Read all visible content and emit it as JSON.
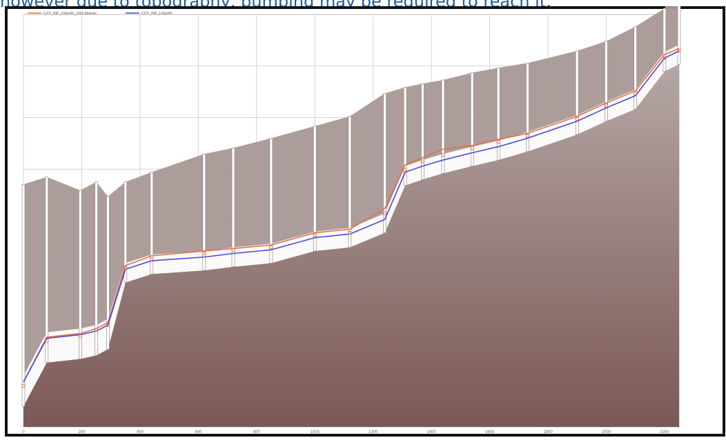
{
  "caption": "however due to topography, pumping may be required to reach it.",
  "chart_data": {
    "type": "line",
    "title": "",
    "xlabel": "",
    "ylabel": "",
    "xlim": [
      0,
      2250
    ],
    "x_ticks": [
      "0",
      "200",
      "400",
      "600",
      "800",
      "1000",
      "1200",
      "1400",
      "1600",
      "1800",
      "2000",
      "2200"
    ],
    "y_ticks": [
      "",
      "",
      "",
      "",
      "",
      "",
      ""
    ],
    "grid": true,
    "legend": "top-left",
    "colors": {
      "ground_top": "#b4a7a5",
      "ground_bottom": "#7b5856",
      "series_1": "#e0704a",
      "series_2": "#4848d8",
      "grid": "#d3d3d3",
      "frame": "#111111"
    },
    "x": [
      0,
      80,
      195,
      250,
      290,
      350,
      440,
      620,
      720,
      850,
      1000,
      1120,
      1240,
      1310,
      1370,
      1440,
      1540,
      1630,
      1730,
      1900,
      2000,
      2100,
      2200,
      2250
    ],
    "series": [
      {
        "name": "CITY_IHP_100yrHF_1500 Melvale",
        "values": [
          3.7,
          7.4,
          7.7,
          8.1,
          8.6,
          13.3,
          14.1,
          14.5,
          14.7,
          15.0,
          16.0,
          16.3,
          18.0,
          21.6,
          22.2,
          22.9,
          23.2,
          23.7,
          24.2,
          25.6,
          26.7,
          27.7,
          30.7,
          31.2
        ],
        "markers": [
          3.4,
          7.1,
          7.5,
          8.0,
          8.4,
          13.1,
          14.0,
          14.3,
          14.6,
          14.8,
          15.8,
          16.0,
          17.6,
          21.2,
          21.9,
          22.4,
          23.0,
          23.5,
          24.0,
          25.4,
          26.5,
          27.5,
          30.4,
          31.0
        ]
      },
      {
        "name": "CITY_IHP_100yrHF",
        "values": [
          3.7,
          7.3,
          7.6,
          7.9,
          8.4,
          13.0,
          13.7,
          14.0,
          14.3,
          14.6,
          15.6,
          15.9,
          17.1,
          21.0,
          21.5,
          22.0,
          22.6,
          23.1,
          23.8,
          25.2,
          26.3,
          27.3,
          30.4,
          31.0
        ]
      }
    ]
  }
}
